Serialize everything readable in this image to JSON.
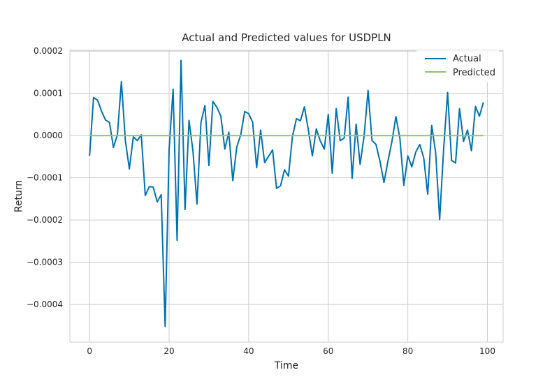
{
  "chart_data": {
    "type": "line",
    "title": "Actual and Predicted values for USDPLN",
    "xlabel": "Time",
    "ylabel": "Return",
    "xlim": [
      -4.95,
      103.95
    ],
    "ylim": [
      -0.000489,
      0.000202
    ],
    "x_ticks": [
      0,
      20,
      40,
      60,
      80,
      100
    ],
    "x_tick_labels": [
      "0",
      "20",
      "40",
      "60",
      "80",
      "100"
    ],
    "y_ticks": [
      0.0002,
      0.0001,
      0.0,
      -0.0001,
      -0.0002,
      -0.0003,
      -0.0004
    ],
    "y_tick_labels": [
      "0.0002",
      "0.0001",
      "0.0000",
      "−0.0001",
      "−0.0002",
      "−0.0003",
      "−0.0004"
    ],
    "grid": true,
    "legend_position": "top-right",
    "series": [
      {
        "name": "Actual",
        "color": "#0072b2",
        "x": [
          0,
          1,
          2,
          3,
          4,
          5,
          6,
          7,
          8,
          9,
          10,
          11,
          12,
          13,
          14,
          15,
          16,
          17,
          18,
          19,
          20,
          21,
          22,
          23,
          24,
          25,
          26,
          27,
          28,
          29,
          30,
          31,
          32,
          33,
          34,
          35,
          36,
          37,
          38,
          39,
          40,
          41,
          42,
          43,
          44,
          45,
          46,
          47,
          48,
          49,
          50,
          51,
          52,
          53,
          54,
          55,
          56,
          57,
          58,
          59,
          60,
          61,
          62,
          63,
          64,
          65,
          66,
          67,
          68,
          69,
          70,
          71,
          72,
          73,
          74,
          75,
          76,
          77,
          78,
          79,
          80,
          81,
          82,
          83,
          84,
          85,
          86,
          87,
          88,
          89,
          90,
          91,
          92,
          93,
          94,
          95,
          96,
          97,
          98,
          99
        ],
        "values": [
          -4.8e-05,
          9e-05,
          8.4e-05,
          5.8e-05,
          3.7e-05,
          3.1e-05,
          -2.8e-05,
          2e-06,
          0.000128,
          -1.2e-05,
          -7.9e-05,
          -3e-06,
          -1.2e-05,
          2e-06,
          -0.000142,
          -0.000121,
          -0.000122,
          -0.000157,
          -0.00014,
          -0.000452,
          -3.2e-05,
          0.00011,
          -0.000248,
          0.000178,
          -0.000175,
          3.6e-05,
          -3.8e-05,
          -0.000162,
          3.1e-05,
          7.1e-05,
          -7.1e-05,
          8.1e-05,
          6.7e-05,
          4.6e-05,
          -3.2e-05,
          8e-06,
          -0.000107,
          -2.7e-05,
          2e-06,
          5.7e-05,
          5.2e-05,
          3.1e-05,
          -7.6e-05,
          1.3e-05,
          -6.4e-05,
          -4.9e-05,
          -3.4e-05,
          -0.000125,
          -0.000119,
          -8.1e-05,
          -9.6e-05,
          -2e-06,
          4e-05,
          3.5e-05,
          6.8e-05,
          1.3e-05,
          -4.8e-05,
          1.6e-05,
          -1.3e-05,
          -3.2e-05,
          5e-05,
          -8.9e-05,
          6.4e-05,
          -1.2e-05,
          -6e-06,
          9.1e-05,
          -0.000101,
          2.7e-05,
          -6.8e-05,
          -2e-06,
          0.000107,
          -1.2e-05,
          -2.1e-05,
          -6.1e-05,
          -0.000111,
          -6.1e-05,
          -1.4e-05,
          4.5e-05,
          -6e-06,
          -0.000118,
          -4.8e-05,
          -7.4e-05,
          -3.9e-05,
          -2.1e-05,
          -5.3e-05,
          -0.000139,
          2.4e-05,
          -4.1e-05,
          -0.000199,
          -3.2e-05,
          0.000102,
          -5.9e-05,
          -6.5e-05,
          6.4e-05,
          -1.4e-05,
          1.3e-05,
          -3.6e-05,
          6.9e-05,
          4.6e-05,
          7.9e-05
        ]
      },
      {
        "name": "Predicted",
        "color": "#8fc26a",
        "x": [
          0,
          99
        ],
        "values": [
          0.0,
          0.0
        ]
      }
    ]
  }
}
